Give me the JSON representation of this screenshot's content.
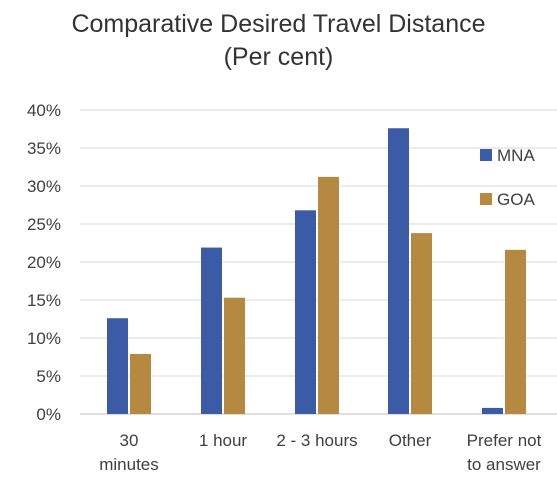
{
  "chart_data": {
    "type": "bar",
    "title_line1": "Comparative Desired Travel Distance",
    "title_line2": "(Per cent)",
    "categories": [
      [
        "30",
        "minutes"
      ],
      [
        "1 hour"
      ],
      [
        "2 - 3 hours"
      ],
      [
        "Other"
      ],
      [
        "Prefer not",
        "to answer"
      ]
    ],
    "series": [
      {
        "name": "MNA",
        "color": "#3c5ba6",
        "values": [
          12.6,
          21.9,
          26.8,
          37.6,
          0.8
        ]
      },
      {
        "name": "GOA",
        "color": "#b5893f",
        "values": [
          7.9,
          15.3,
          31.2,
          23.8,
          21.6
        ]
      }
    ],
    "ylim": [
      0,
      40
    ],
    "yticks": [
      "0%",
      "5%",
      "10%",
      "15%",
      "20%",
      "25%",
      "30%",
      "35%",
      "40%"
    ],
    "grid": true,
    "legend_position": "right"
  }
}
